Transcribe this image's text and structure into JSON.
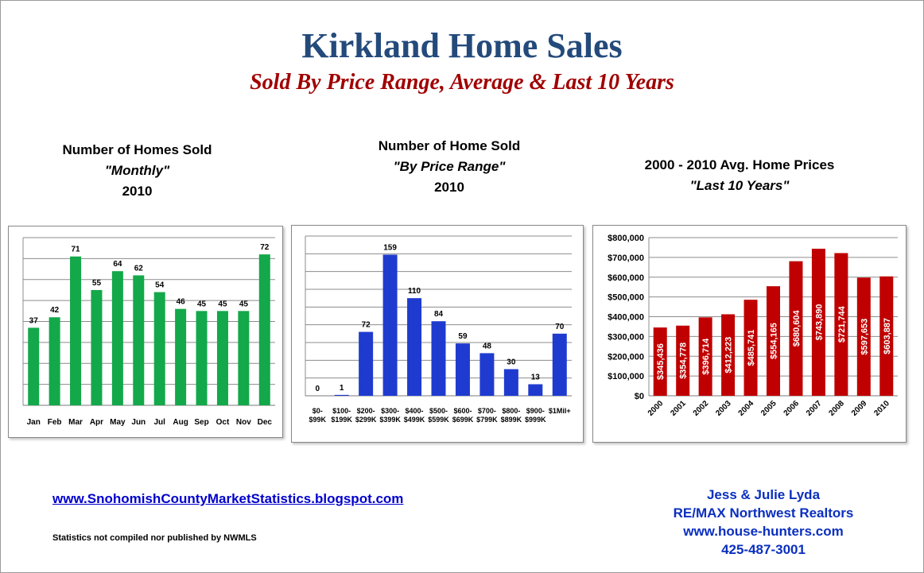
{
  "header": {
    "title": "Kirkland Home Sales",
    "subtitle": "Sold By Price Range, Average & Last 10 Years"
  },
  "charts": {
    "monthly": {
      "line1": "Number of Homes Sold",
      "line2": "\"Monthly\"",
      "line3": "2010"
    },
    "price_range": {
      "line1": "Number of Home Sold",
      "line2": "\"By Price Range\"",
      "line3": "2010"
    },
    "avg_price": {
      "line1": "2000 - 2010 Avg. Home Prices",
      "line2": "\"Last 10 Years\""
    }
  },
  "footer": {
    "link": "www.SnohomishCountyMarketStatistics.blogspot.com",
    "note": "Statistics not compiled nor published by NWMLS",
    "contact": [
      "Jess & Julie Lyda",
      "RE/MAX Northwest Realtors",
      "www.house-hunters.com",
      "425-487-3001"
    ]
  },
  "colors": {
    "green": "#13a84a",
    "blue": "#1f3bcf",
    "red": "#c00000",
    "title_blue": "#234a7b",
    "subtitle_red": "#a00000",
    "link_blue": "#0000cc"
  },
  "chart_data": [
    {
      "type": "bar",
      "categories": [
        "Jan",
        "Feb",
        "Mar",
        "Apr",
        "May",
        "Jun",
        "Jul",
        "Aug",
        "Sep",
        "Oct",
        "Nov",
        "Dec"
      ],
      "values": [
        37,
        42,
        71,
        55,
        64,
        62,
        54,
        46,
        45,
        45,
        45,
        72
      ],
      "ylim": [
        0,
        80
      ],
      "grid": true,
      "data_labels": true,
      "color": "#13a84a"
    },
    {
      "type": "bar",
      "categories": [
        [
          "$0-",
          "$99K"
        ],
        [
          "$100-",
          "$199K"
        ],
        [
          "$200-",
          "$299K"
        ],
        [
          "$300-",
          "$399K"
        ],
        [
          "$400-",
          "$499K"
        ],
        [
          "$500-",
          "$599K"
        ],
        [
          "$600-",
          "$699K"
        ],
        [
          "$700-",
          "$799K"
        ],
        [
          "$800-",
          "$899K"
        ],
        [
          "$900-",
          "$999K"
        ],
        [
          "$1Mil+",
          ""
        ]
      ],
      "values": [
        0,
        1,
        72,
        159,
        110,
        84,
        59,
        48,
        30,
        13,
        70
      ],
      "ylim": [
        0,
        180
      ],
      "grid": true,
      "data_labels": true,
      "color": "#1f3bcf"
    },
    {
      "type": "bar",
      "categories": [
        "2000",
        "2001",
        "2002",
        "2003",
        "2004",
        "2005",
        "2006",
        "2007",
        "2008",
        "2009",
        "2010"
      ],
      "values": [
        345436,
        354778,
        396714,
        412223,
        485741,
        554165,
        680604,
        743890,
        721744,
        597653,
        603887
      ],
      "value_labels": [
        "$345,436",
        "$354,778",
        "$396,714",
        "$412,223",
        "$485,741",
        "$554,165",
        "$680,604",
        "$743,890",
        "$721,744",
        "$597,653",
        "$603,887"
      ],
      "ylim": [
        0,
        800000
      ],
      "yticks": [
        "$0",
        "$100,000",
        "$200,000",
        "$300,000",
        "$400,000",
        "$500,000",
        "$600,000",
        "$700,000",
        "$800,000"
      ],
      "grid": true,
      "data_labels": true,
      "color": "#c00000"
    }
  ]
}
